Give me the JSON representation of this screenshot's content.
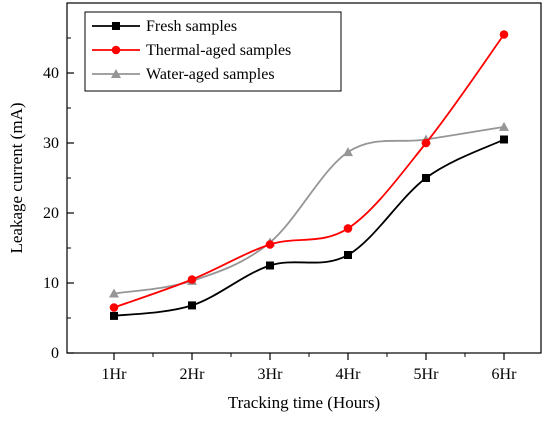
{
  "chart_data": {
    "type": "line",
    "title": "",
    "xlabel": "Tracking time (Hours)",
    "ylabel": "Leakage current (mA)",
    "categories": [
      "1Hr",
      "2Hr",
      "3Hr",
      "4Hr",
      "5Hr",
      "6Hr"
    ],
    "ylim": [
      0,
      50
    ],
    "yticks": [
      0,
      10,
      20,
      30,
      40
    ],
    "legend_position": "top-left",
    "grid": false,
    "series": [
      {
        "name": "Fresh samples",
        "color": "#000000",
        "marker": "square",
        "values": [
          5.3,
          6.8,
          12.5,
          14.0,
          25.0,
          30.5
        ]
      },
      {
        "name": "Thermal-aged samples",
        "color": "#ff0000",
        "marker": "circle",
        "values": [
          6.5,
          10.5,
          15.5,
          17.8,
          30.0,
          45.5
        ]
      },
      {
        "name": "Water-aged samples",
        "color": "#969696",
        "marker": "triangle",
        "values": [
          8.5,
          10.3,
          15.8,
          28.7,
          30.5,
          32.3
        ]
      }
    ]
  }
}
